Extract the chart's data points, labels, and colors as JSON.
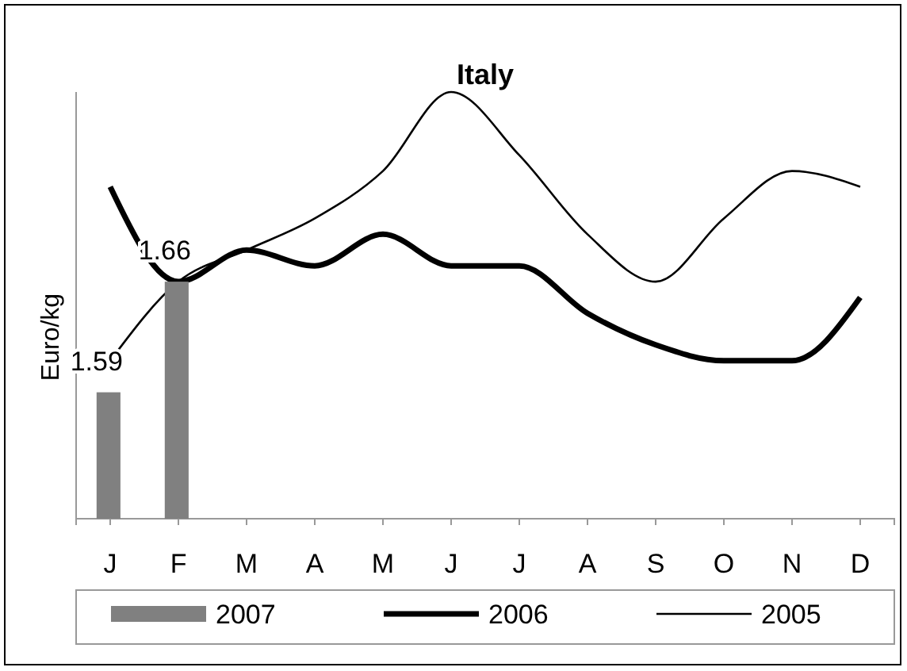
{
  "chart_data": {
    "type": "line",
    "title": "Italy",
    "ylabel": "Euro/kg",
    "ylim": [
      1.51,
      1.78
    ],
    "tick_labels": "x",
    "legend": "bottom",
    "categories": [
      "J",
      "F",
      "M",
      "A",
      "M",
      "J",
      "J",
      "A",
      "S",
      "O",
      "N",
      "D"
    ],
    "series": [
      {
        "name": "2007",
        "type": "bar",
        "color": "#808080",
        "values": [
          1.59,
          1.66,
          null,
          null,
          null,
          null,
          null,
          null,
          null,
          null,
          null,
          null
        ],
        "value_labels": [
          "1.59",
          "1.66",
          null,
          null,
          null,
          null,
          null,
          null,
          null,
          null,
          null,
          null
        ]
      },
      {
        "name": "2006",
        "color": "#000000",
        "values": [
          1.72,
          1.66,
          1.68,
          1.67,
          1.69,
          1.67,
          1.67,
          1.64,
          1.62,
          1.61,
          1.61,
          1.65
        ]
      },
      {
        "name": "2005",
        "color": "#000000",
        "values": [
          1.61,
          1.66,
          1.68,
          1.7,
          1.73,
          1.78,
          1.74,
          1.69,
          1.66,
          1.7,
          1.73,
          1.72
        ]
      }
    ]
  }
}
